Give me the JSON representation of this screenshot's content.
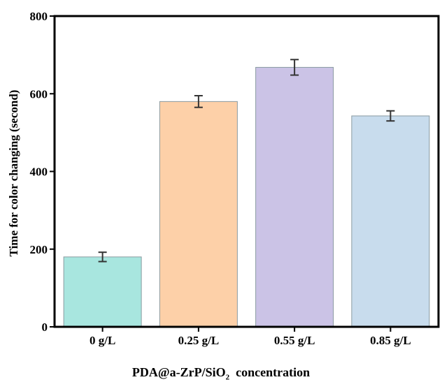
{
  "chart_data": {
    "type": "bar",
    "categories": [
      "0 g/L",
      "0.25 g/L",
      "0.55 g/L",
      "0.85 g/L"
    ],
    "values": [
      180,
      580,
      668,
      543
    ],
    "errors": [
      12,
      15,
      20,
      13
    ],
    "colors": [
      "#a8e6df",
      "#fdd0a8",
      "#cbc3e6",
      "#c8dced"
    ],
    "ylabel": "Time for color changing (second)",
    "xlabel_main": "PDA@a-ZrP/SiO",
    "xlabel_sub": "2",
    "xlabel_tail": "  concentration",
    "ylim": [
      0,
      800
    ],
    "yticks": [
      0,
      200,
      400,
      600,
      800
    ],
    "grid": false
  }
}
